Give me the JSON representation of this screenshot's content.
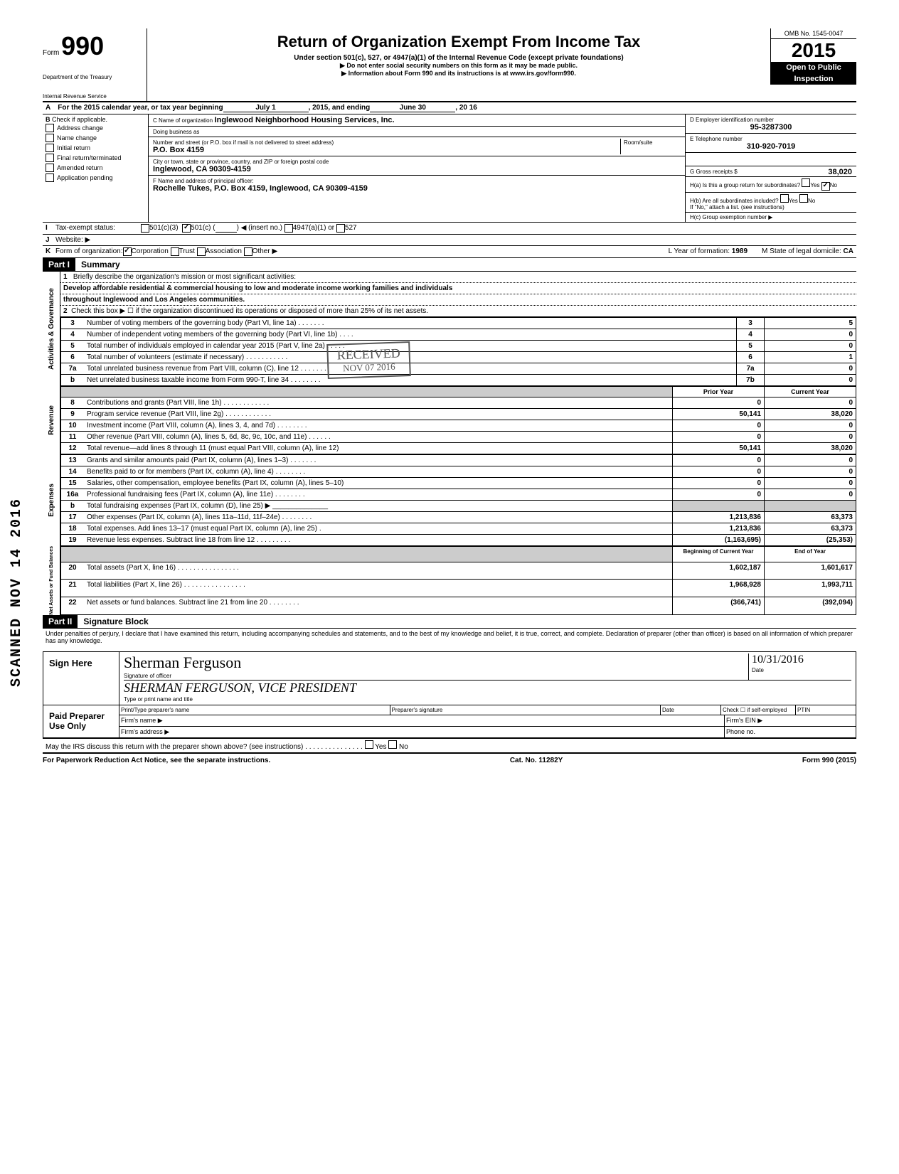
{
  "header": {
    "form_word": "Form",
    "form_number": "990",
    "title": "Return of Organization Exempt From Income Tax",
    "subtitle": "Under section 501(c), 527, or 4947(a)(1) of the Internal Revenue Code (except private foundations)",
    "note1": "▶ Do not enter social security numbers on this form as it may be made public.",
    "note2": "▶ Information about Form 990 and its instructions is at www.irs.gov/form990.",
    "dept1": "Department of the Treasury",
    "dept2": "Internal Revenue Service",
    "omb": "OMB No. 1545-0047",
    "year_prefix": "20",
    "year": "15",
    "open1": "Open to Public",
    "open2": "Inspection"
  },
  "lineA": {
    "label": "A",
    "text": "For the 2015 calendar year, or tax year beginning",
    "begin": "July 1",
    "mid": ", 2015, and ending",
    "end": "June 30",
    "yr": ", 20  16"
  },
  "sectionB": {
    "check_label": "Check if applicable.",
    "checks": [
      "Address change",
      "Name change",
      "Initial return",
      "Final return/terminated",
      "Amended return",
      "Application pending"
    ],
    "c_label": "C Name of organization",
    "c_val": "Inglewood Neighborhood Housing Services, Inc.",
    "dba_label": "Doing business as",
    "addr_label": "Number and street (or P.O. box if mail is not delivered to street address)",
    "addr_val": "P.O. Box 4159",
    "room_label": "Room/suite",
    "city_label": "City or town, state or province, country, and ZIP or foreign postal code",
    "city_val": "Inglewood, CA 90309-4159",
    "f_label": "F Name and address of principal officer:",
    "f_val": "Rochelle Tukes, P.O. Box 4159, Inglewood, CA 90309-4159",
    "d_label": "D Employer identification number",
    "d_val": "95-3287300",
    "e_label": "E Telephone number",
    "e_val": "310-920-7019",
    "g_label": "G Gross receipts $",
    "g_val": "38,020",
    "ha_label": "H(a) Is this a group return for subordinates?",
    "ha_yes": "Yes",
    "ha_no": "No",
    "hb_label": "H(b) Are all subordinates included?",
    "hb_yes": "Yes",
    "hb_no": "No",
    "hb_note": "If \"No,\" attach a list. (see instructions)",
    "hc_label": "H(c) Group exemption number ▶"
  },
  "lineI": {
    "label": "I",
    "text": "Tax-exempt status:",
    "opt1": "501(c)(3)",
    "opt2": "501(c) (",
    "opt2b": ") ◀ (insert no.)",
    "opt3": "4947(a)(1) or",
    "opt4": "527"
  },
  "lineJ": {
    "label": "J",
    "text": "Website: ▶"
  },
  "lineK": {
    "label": "K",
    "text": "Form of organization:",
    "opts": [
      "Corporation",
      "Trust",
      "Association",
      "Other ▶"
    ],
    "l_label": "L Year of formation:",
    "l_val": "1989",
    "m_label": "M State of legal domicile:",
    "m_val": "CA"
  },
  "part1": {
    "header": "Part I",
    "title": "Summary"
  },
  "summary": {
    "q1_num": "1",
    "q1": "Briefly describe the organization's mission or most significant activities:",
    "q1_ans1": "Develop affordable residential & commercial housing to low and moderate income working families and individuals",
    "q1_ans2": "throughout Inglewood and Los Angeles communities.",
    "q2_num": "2",
    "q2": "Check this box ▶ ☐ if the organization discontinued its operations or disposed of more than 25% of its net assets.",
    "rows_ag": [
      {
        "n": "3",
        "d": "Number of voting members of the governing body (Part VI, line 1a) . . . . . . .",
        "c": "3",
        "v": "5"
      },
      {
        "n": "4",
        "d": "Number of independent voting members of the governing body (Part VI, line 1b) . . . .",
        "c": "4",
        "v": "0"
      },
      {
        "n": "5",
        "d": "Total number of individuals employed in calendar year 2015 (Part V, line 2a) . . . . .",
        "c": "5",
        "v": "0"
      },
      {
        "n": "6",
        "d": "Total number of volunteers (estimate if necessary) . . . . . . . . . . .",
        "c": "6",
        "v": "1"
      },
      {
        "n": "7a",
        "d": "Total unrelated business revenue from Part VIII, column (C), line 12 . . . . . . .",
        "c": "7a",
        "v": "0"
      },
      {
        "n": "b",
        "d": "Net unrelated business taxable income from Form 990-T, line 34 . . . . . . . .",
        "c": "7b",
        "v": "0"
      }
    ],
    "prior_hdr": "Prior Year",
    "current_hdr": "Current Year",
    "rows_rev": [
      {
        "n": "8",
        "d": "Contributions and grants (Part VIII, line 1h) . . . . . . . . . . . .",
        "p": "0",
        "c": "0"
      },
      {
        "n": "9",
        "d": "Program service revenue (Part VIII, line 2g) . . . . . . . . . . . .",
        "p": "50,141",
        "c": "38,020"
      },
      {
        "n": "10",
        "d": "Investment income (Part VIII, column (A), lines 3, 4, and 7d) . . . . . . . .",
        "p": "0",
        "c": "0"
      },
      {
        "n": "11",
        "d": "Other revenue (Part VIII, column (A), lines 5, 6d, 8c, 9c, 10c, and 11e) . . . . . .",
        "p": "0",
        "c": "0"
      },
      {
        "n": "12",
        "d": "Total revenue—add lines 8 through 11 (must equal Part VIII, column (A), line 12)",
        "p": "50,141",
        "c": "38,020"
      }
    ],
    "rows_exp": [
      {
        "n": "13",
        "d": "Grants and similar amounts paid (Part IX, column (A), lines 1–3) . . . . . . .",
        "p": "0",
        "c": "0"
      },
      {
        "n": "14",
        "d": "Benefits paid to or for members (Part IX, column (A), line 4) . . . . . . . .",
        "p": "0",
        "c": "0"
      },
      {
        "n": "15",
        "d": "Salaries, other compensation, employee benefits (Part IX, column (A), lines 5–10)",
        "p": "0",
        "c": "0"
      },
      {
        "n": "16a",
        "d": "Professional fundraising fees (Part IX, column (A), line 11e) . . . . . . . .",
        "p": "0",
        "c": "0"
      },
      {
        "n": "b",
        "d": "Total fundraising expenses (Part IX, column (D), line 25) ▶ ______________",
        "p": "",
        "c": ""
      },
      {
        "n": "17",
        "d": "Other expenses (Part IX, column (A), lines 11a–11d, 11f–24e) . . . . . . . .",
        "p": "1,213,836",
        "c": "63,373"
      },
      {
        "n": "18",
        "d": "Total expenses. Add lines 13–17 (must equal Part IX, column (A), line 25) .",
        "p": "1,213,836",
        "c": "63,373"
      },
      {
        "n": "19",
        "d": "Revenue less expenses. Subtract line 18 from line 12 . . . . . . . . .",
        "p": "(1,163,695)",
        "c": "(25,353)"
      }
    ],
    "boy_hdr": "Beginning of Current Year",
    "eoy_hdr": "End of Year",
    "rows_net": [
      {
        "n": "20",
        "d": "Total assets (Part X, line 16) . . . . . . . . . . . . . . . .",
        "p": "1,602,187",
        "c": "1,601,617"
      },
      {
        "n": "21",
        "d": "Total liabilities (Part X, line 26) . . . . . . . . . . . . . . . .",
        "p": "1,968,928",
        "c": "1,993,711"
      },
      {
        "n": "22",
        "d": "Net assets or fund balances. Subtract line 21 from line 20 . . . . . . . .",
        "p": "(366,741)",
        "c": "(392,094)"
      }
    ],
    "vlabels": {
      "ag": "Activities & Governance",
      "rev": "Revenue",
      "exp": "Expenses",
      "net": "Net Assets or\nFund Balances"
    }
  },
  "part2": {
    "header": "Part II",
    "title": "Signature Block"
  },
  "sig": {
    "declaration": "Under penalties of perjury, I declare that I have examined this return, including accompanying schedules and statements, and to the best of my knowledge and belief, it is true, correct, and complete. Declaration of preparer (other than officer) is based on all information of which preparer has any knowledge.",
    "sign_here": "Sign Here",
    "sig_val": "Sherman Ferguson",
    "sig_label": "Signature of officer",
    "date_label": "Date",
    "date_val": "10/31/2016",
    "name_val": "SHERMAN FERGUSON, VICE PRESIDENT",
    "name_label": "Type or print name and title",
    "paid": "Paid Preparer Use Only",
    "prep_name": "Print/Type preparer's name",
    "prep_sig": "Preparer's signature",
    "prep_date": "Date",
    "prep_check": "Check ☐ if self-employed",
    "ptin": "PTIN",
    "firm_name": "Firm's name ▶",
    "firm_ein": "Firm's EIN ▶",
    "firm_addr": "Firm's address ▶",
    "phone": "Phone no.",
    "irs_q": "May the IRS discuss this return with the preparer shown above? (see instructions) . . . . . . . . . . . . . . .",
    "yes": "Yes",
    "no": "No"
  },
  "footer": {
    "left": "For Paperwork Reduction Act Notice, see the separate instructions.",
    "mid": "Cat. No. 11282Y",
    "right": "Form 990 (2015)"
  },
  "stamps": {
    "received": "RECEIVED",
    "received_date": "NOV 07 2016",
    "scanned": "SCANNED NOV 14 2016"
  }
}
